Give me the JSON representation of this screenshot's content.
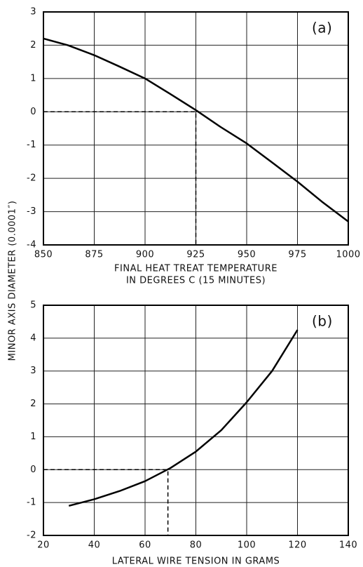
{
  "ylabel": "MINOR AXIS DIAMETER (0.0001″)",
  "chart_data": [
    {
      "type": "line",
      "annotation": "(a)",
      "xlabel": [
        "FINAL HEAT TREAT TEMPERATURE",
        "IN DEGREES C (15 MINUTES)"
      ],
      "x": [
        850,
        862,
        875,
        887,
        900,
        912,
        925,
        937,
        950,
        962,
        975,
        987,
        1000
      ],
      "series": [
        {
          "color": "#000000",
          "values": [
            2.2,
            2.0,
            1.7,
            1.37,
            1.0,
            0.55,
            0.05,
            -0.45,
            -0.95,
            -1.5,
            -2.1,
            -2.7,
            -3.3
          ]
        }
      ],
      "guide": {
        "x": 925,
        "y": 0
      },
      "xlim": [
        850,
        1000
      ],
      "xticks": [
        850,
        875,
        900,
        925,
        950,
        975,
        1000
      ],
      "ylim": [
        -4,
        3
      ],
      "yticks": [
        -4,
        -3,
        -2,
        -1,
        0,
        1,
        2,
        3
      ],
      "grid": true
    },
    {
      "type": "line",
      "annotation": "(b)",
      "xlabel": [
        "LATERAL WIRE TENSION IN GRAMS"
      ],
      "x": [
        30,
        40,
        50,
        60,
        70,
        80,
        90,
        100,
        110,
        120
      ],
      "series": [
        {
          "color": "#000000",
          "values": [
            -1.1,
            -0.9,
            -0.65,
            -0.35,
            0.05,
            0.55,
            1.2,
            2.05,
            3.0,
            4.25
          ]
        }
      ],
      "guide": {
        "x": 69,
        "y": 0
      },
      "xlim": [
        20,
        140
      ],
      "xticks": [
        20,
        40,
        60,
        80,
        100,
        120,
        140
      ],
      "ylim": [
        -2,
        5
      ],
      "yticks": [
        -2,
        -1,
        0,
        1,
        2,
        3,
        4,
        5
      ],
      "grid": true
    }
  ]
}
